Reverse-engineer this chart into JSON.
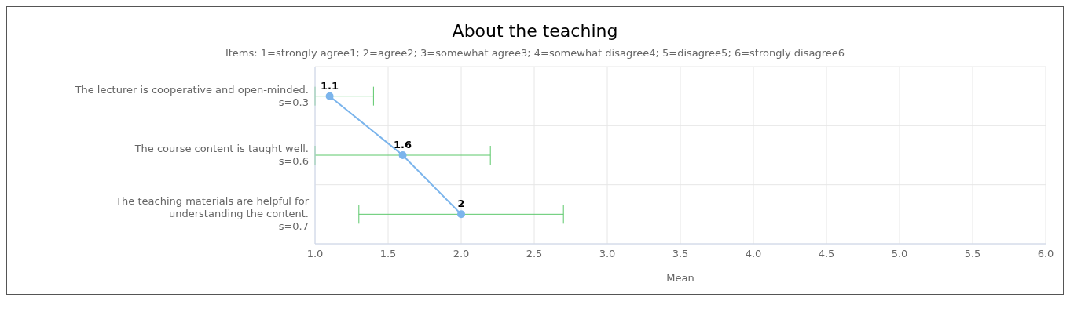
{
  "chart_data": {
    "type": "line",
    "orientation": "horizontal",
    "title": "About the teaching",
    "subtitle": "Items: 1=strongly agree1; 2=agree2; 3=somewhat agree3; 4=somewhat disagree4; 5=disagree5; 6=strongly disagree6",
    "xlabel": "Mean",
    "categories": [
      "The lecturer is cooperative and open-minded.\ns=0.3",
      "The course content is taught well.\ns=0.6",
      "The teaching materials are helpful for\nunderstanding the content.\ns=0.7"
    ],
    "series": [
      {
        "color": "#7cb5ec",
        "values": [
          1.1,
          1.6,
          2
        ],
        "errors": [
          [
            1.0,
            1.4
          ],
          [
            1.0,
            2.2
          ],
          [
            1.3,
            2.7
          ]
        ]
      }
    ],
    "xlim": [
      1,
      6
    ],
    "xticks": [
      {
        "value": 1,
        "label": "1.0"
      },
      1.5,
      {
        "value": 2,
        "label": "2.0"
      },
      2.5,
      {
        "value": 3,
        "label": "3.0"
      },
      3.5,
      {
        "value": 4,
        "label": "4.0"
      },
      4.5,
      {
        "value": 5,
        "label": "5.0"
      },
      5.5,
      {
        "value": 6,
        "label": "6.0"
      }
    ],
    "grid": true,
    "marker": "circle",
    "line_style": "solid",
    "data_labels": true
  }
}
